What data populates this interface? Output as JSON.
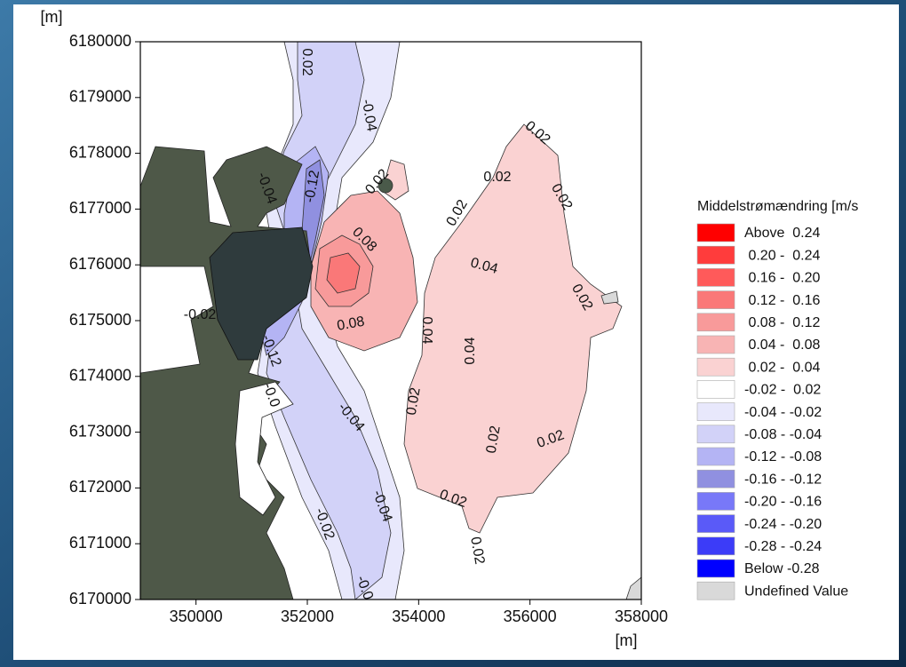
{
  "axes": {
    "y_unit": "[m]",
    "x_unit": "[m]",
    "xlim": [
      349000,
      358000
    ],
    "xticks": [
      350000,
      352000,
      354000,
      356000,
      358000
    ],
    "ylim": [
      6170000,
      6180000
    ],
    "yticks": [
      6170000,
      6171000,
      6172000,
      6173000,
      6174000,
      6175000,
      6176000,
      6177000,
      6178000,
      6179000,
      6180000
    ]
  },
  "legend": {
    "title": "Middelstrømændring [m/s",
    "items": [
      {
        "label": "Above  0.24",
        "color": "#ff0000"
      },
      {
        "label": " 0.20 -  0.24",
        "color": "#ff3c3c"
      },
      {
        "label": " 0.16 -  0.20",
        "color": "#ff5a5a"
      },
      {
        "label": " 0.12 -  0.16",
        "color": "#fa7878"
      },
      {
        "label": " 0.08 -  0.12",
        "color": "#f89a9a"
      },
      {
        "label": " 0.04 -  0.08",
        "color": "#f8b4b4"
      },
      {
        "label": " 0.02 -  0.04",
        "color": "#fad2d2"
      },
      {
        "label": "-0.02 -  0.02",
        "color": "#ffffff"
      },
      {
        "label": "-0.04 - -0.02",
        "color": "#e8e8fc"
      },
      {
        "label": "-0.08 - -0.04",
        "color": "#d2d2f8"
      },
      {
        "label": "-0.12 - -0.08",
        "color": "#b4b4f4"
      },
      {
        "label": "-0.16 - -0.12",
        "color": "#9090e0"
      },
      {
        "label": "-0.20 - -0.16",
        "color": "#7878f8"
      },
      {
        "label": "-0.24 - -0.20",
        "color": "#5a5af8"
      },
      {
        "label": "-0.28 - -0.24",
        "color": "#3c3cf8"
      },
      {
        "label": "Below -0.28",
        "color": "#0000ff"
      },
      {
        "label": "Undefined Value",
        "color": "#d9d9d9"
      }
    ]
  },
  "contour_labels": [
    "0.02",
    "-0.04",
    "-0.04",
    "-0.12",
    "0.02",
    "0.02",
    "0.02",
    "0.02",
    "0.02",
    "0.08",
    "0.04",
    "0.02",
    "0.08",
    "-0.02",
    "-0.12",
    "0.04",
    "0.04",
    "-0.0",
    "-0.04",
    "0.02",
    "0.02",
    "0.02",
    "-0.04",
    "0.02",
    "-0.02",
    "0.02",
    "-0.0"
  ]
}
